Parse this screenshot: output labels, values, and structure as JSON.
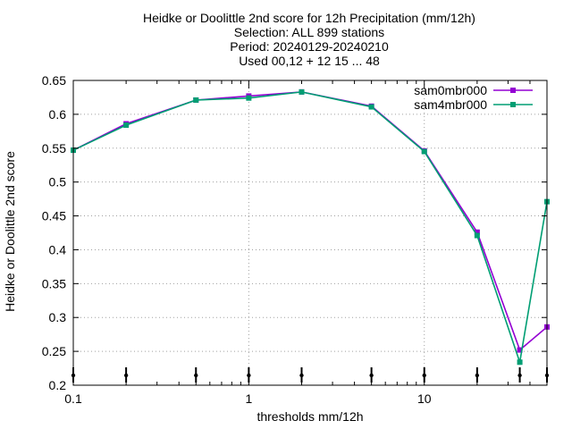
{
  "chart_data": {
    "type": "line",
    "title_lines": [
      "Heidke or Doolittle 2nd score  for 12h Precipitation (mm/12h)",
      "Selection: ALL    899 stations",
      "Period: 20240129-20240210",
      "Used 00,12 + 12 15 ... 48"
    ],
    "xlabel": "thresholds mm/12h",
    "ylabel": "Heidke or Doolittle 2nd score",
    "x_scale": "log",
    "xlim": [
      0.1,
      50
    ],
    "ylim": [
      0.2,
      0.65
    ],
    "x_ticks": [
      0.1,
      1,
      10
    ],
    "x_tick_labels": [
      "0.1",
      "1",
      "10"
    ],
    "y_ticks": [
      0.2,
      0.25,
      0.3,
      0.35,
      0.4,
      0.45,
      0.5,
      0.55,
      0.6,
      0.65
    ],
    "y_tick_labels": [
      "0.2",
      "0.25",
      "0.3",
      "0.35",
      "0.4",
      "0.45",
      "0.5",
      "0.55",
      "0.6",
      "0.65"
    ],
    "grid": true,
    "legend_position": "top-right",
    "sample_markers_x": [
      0.1,
      0.2,
      0.5,
      1,
      2,
      5,
      10,
      20,
      35,
      50
    ],
    "x": [
      0.1,
      0.2,
      0.5,
      1,
      2,
      5,
      10,
      20,
      35,
      50
    ],
    "series": [
      {
        "name": "sam0mbr000",
        "color": "#9400d3",
        "values": [
          0.547,
          0.586,
          0.621,
          0.627,
          0.633,
          0.612,
          0.546,
          0.426,
          0.252,
          0.286
        ]
      },
      {
        "name": "sam4mbr000",
        "color": "#009e73",
        "values": [
          0.547,
          0.584,
          0.621,
          0.624,
          0.633,
          0.611,
          0.545,
          0.421,
          0.234,
          0.471
        ]
      }
    ]
  }
}
